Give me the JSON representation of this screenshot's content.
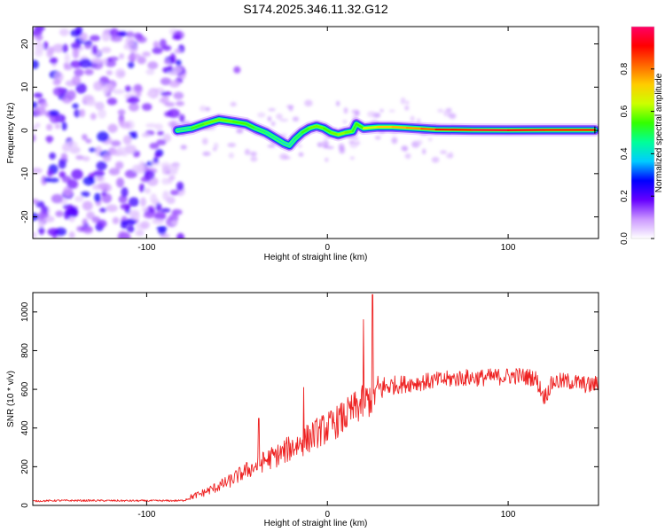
{
  "title": "S174.2025.346.11.32.G12",
  "chart_data": [
    {
      "type": "heatmap",
      "title": "S174.2025.346.11.32.G12",
      "xlabel": "Height of straight line (km)",
      "ylabel": "Frequency (Hz)",
      "xlim": [
        -163,
        150
      ],
      "ylim": [
        -25,
        24
      ],
      "xticks": [
        -100,
        0,
        100
      ],
      "yticks": [
        -20,
        -10,
        0,
        10,
        20
      ],
      "noise_region_x": [
        -163,
        -80
      ],
      "ridge": {
        "x": [
          -83,
          -75,
          -68,
          -60,
          -52,
          -45,
          -40,
          -34,
          -28,
          -24,
          -21,
          -18,
          -14,
          -10,
          -6,
          -2,
          2,
          6,
          10,
          14,
          16,
          20,
          28,
          36,
          44,
          52,
          60,
          80,
          100,
          120,
          148
        ],
        "freq": [
          0,
          0.5,
          1.5,
          2.5,
          2,
          1.5,
          0.5,
          -0.5,
          -2,
          -3,
          -3.5,
          -2,
          -0.5,
          0.5,
          1,
          0.5,
          -0.5,
          -1,
          -0.5,
          -0.2,
          1.5,
          0.5,
          0.8,
          0.8,
          0.6,
          0.4,
          0.2,
          0.1,
          0.05,
          0.1,
          0.1
        ],
        "amplitude": [
          0.35,
          0.5,
          0.55,
          0.6,
          0.55,
          0.55,
          0.5,
          0.45,
          0.45,
          0.4,
          0.4,
          0.45,
          0.5,
          0.55,
          0.6,
          0.55,
          0.55,
          0.6,
          0.6,
          0.55,
          0.5,
          0.6,
          0.7,
          0.75,
          0.75,
          0.8,
          0.85,
          0.95,
          0.95,
          0.9,
          0.9
        ]
      },
      "blob": {
        "x": -50,
        "freq": 14
      },
      "colorbar": {
        "label": "Normalized spectral amplitude",
        "ticks": [
          0.0,
          0.2,
          0.4,
          0.6,
          0.8
        ],
        "tick_labels": [
          "0.0",
          "0.2",
          "0.4",
          "0.6",
          "0.8"
        ],
        "range": [
          0,
          1
        ],
        "colormap": [
          "#ffffff",
          "#cc99ff",
          "#6600ff",
          "#0000ff",
          "#00ccff",
          "#00ff99",
          "#33ff00",
          "#ccff00",
          "#ffcc00",
          "#ff6600",
          "#ff0000",
          "#ff0066"
        ]
      }
    },
    {
      "type": "line",
      "xlabel": "Height of straight line (km)",
      "ylabel": "SNR (10 * v/v)",
      "xlim": [
        -163,
        150
      ],
      "ylim": [
        0,
        1100
      ],
      "xticks": [
        -100,
        0,
        100
      ],
      "yticks": [
        0,
        200,
        400,
        600,
        800,
        1000
      ],
      "series": [
        {
          "name": "SNR",
          "color": "#ee2222",
          "x": [
            -163,
            -150,
            -130,
            -110,
            -90,
            -80,
            -75,
            -70,
            -65,
            -60,
            -55,
            -50,
            -45,
            -40,
            -35,
            -30,
            -25,
            -20,
            -15,
            -10,
            -5,
            0,
            5,
            10,
            15,
            20,
            25,
            28,
            35,
            45,
            55,
            65,
            75,
            85,
            95,
            105,
            115,
            120,
            125,
            135,
            145,
            150
          ],
          "y": [
            22,
            25,
            25,
            24,
            24,
            25,
            45,
            60,
            80,
            100,
            120,
            150,
            180,
            200,
            230,
            250,
            270,
            300,
            320,
            350,
            380,
            400,
            430,
            460,
            500,
            530,
            560,
            600,
            620,
            630,
            640,
            650,
            660,
            660,
            665,
            670,
            660,
            560,
            640,
            640,
            620,
            630
          ],
          "spread": [
            8,
            10,
            10,
            10,
            10,
            10,
            30,
            40,
            50,
            60,
            70,
            80,
            90,
            100,
            110,
            120,
            130,
            140,
            150,
            160,
            160,
            170,
            170,
            180,
            180,
            190,
            200,
            160,
            100,
            90,
            90,
            90,
            90,
            90,
            90,
            90,
            90,
            90,
            90,
            90,
            90,
            90
          ],
          "peaks": [
            {
              "x": 25,
              "y": 1090
            },
            {
              "x": 20,
              "y": 960
            },
            {
              "x": -13,
              "y": 610
            },
            {
              "x": -38,
              "y": 450
            }
          ]
        }
      ]
    }
  ]
}
